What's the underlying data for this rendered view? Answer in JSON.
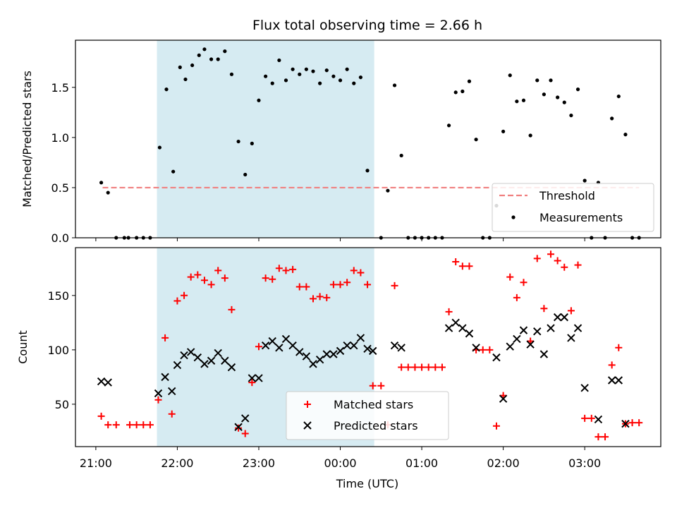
{
  "chart_data": [
    {
      "type": "scatter",
      "title": "Flux total observing time = 2.66 h",
      "xlabel": "",
      "ylabel": "Matched/Predicted stars",
      "xlim": [
        "2000-01-01T20:45",
        "2000-01-02T03:56"
      ],
      "ylim": [
        0,
        1.97
      ],
      "yticks": [
        0.0,
        0.5,
        1.0,
        1.5
      ],
      "ytick_labels": [
        "0.0",
        "0.5",
        "1.0",
        "1.5"
      ],
      "xtick_labels": [
        "21:00",
        "22:00",
        "23:00",
        "00:00",
        "01:00",
        "02:00",
        "03:00"
      ],
      "show_xtick_labels": false,
      "grid": false,
      "legend": "lower right",
      "highlight_span": [
        "2000-01-01T21:45",
        "2000-01-02T00:25"
      ],
      "highlight_color": "#add8e6",
      "threshold": {
        "name": "Threshold",
        "value": 0.5,
        "x": [
          "2000-01-01T21:05",
          "2000-01-02T03:40"
        ],
        "color": "#f08080"
      },
      "series": [
        {
          "name": "Measurements",
          "color": "#000000",
          "marker": "dot",
          "points": [
            [
              "2000-01-01T21:04",
              0.55
            ],
            [
              "2000-01-01T21:09",
              0.45
            ],
            [
              "2000-01-01T21:15",
              0.0
            ],
            [
              "2000-01-01T21:21",
              0.0
            ],
            [
              "2000-01-01T21:24",
              0.0
            ],
            [
              "2000-01-01T21:30",
              0.0
            ],
            [
              "2000-01-01T21:35",
              0.0
            ],
            [
              "2000-01-01T21:40",
              0.0
            ],
            [
              "2000-01-01T21:47",
              0.9
            ],
            [
              "2000-01-01T21:52",
              1.48
            ],
            [
              "2000-01-01T21:57",
              0.66
            ],
            [
              "2000-01-01T22:02",
              1.7
            ],
            [
              "2000-01-01T22:06",
              1.58
            ],
            [
              "2000-01-01T22:11",
              1.72
            ],
            [
              "2000-01-01T22:16",
              1.82
            ],
            [
              "2000-01-01T22:20",
              1.88
            ],
            [
              "2000-01-01T22:25",
              1.78
            ],
            [
              "2000-01-01T22:30",
              1.78
            ],
            [
              "2000-01-01T22:35",
              1.86
            ],
            [
              "2000-01-01T22:40",
              1.63
            ],
            [
              "2000-01-01T22:45",
              0.96
            ],
            [
              "2000-01-01T22:50",
              0.63
            ],
            [
              "2000-01-01T22:55",
              0.94
            ],
            [
              "2000-01-01T23:00",
              1.37
            ],
            [
              "2000-01-01T23:05",
              1.61
            ],
            [
              "2000-01-01T23:10",
              1.54
            ],
            [
              "2000-01-01T23:15",
              1.77
            ],
            [
              "2000-01-01T23:20",
              1.57
            ],
            [
              "2000-01-01T23:25",
              1.68
            ],
            [
              "2000-01-01T23:30",
              1.63
            ],
            [
              "2000-01-01T23:35",
              1.68
            ],
            [
              "2000-01-01T23:40",
              1.66
            ],
            [
              "2000-01-01T23:45",
              1.54
            ],
            [
              "2000-01-01T23:50",
              1.67
            ],
            [
              "2000-01-01T23:55",
              1.61
            ],
            [
              "2000-01-02T00:00",
              1.57
            ],
            [
              "2000-01-02T00:05",
              1.68
            ],
            [
              "2000-01-02T00:10",
              1.54
            ],
            [
              "2000-01-02T00:15",
              1.6
            ],
            [
              "2000-01-02T00:20",
              0.67
            ],
            [
              "2000-01-02T00:30",
              0.0
            ],
            [
              "2000-01-02T00:35",
              0.47
            ],
            [
              "2000-01-02T00:40",
              1.52
            ],
            [
              "2000-01-02T00:45",
              0.82
            ],
            [
              "2000-01-02T00:50",
              0.0
            ],
            [
              "2000-01-02T00:55",
              0.0
            ],
            [
              "2000-01-02T01:00",
              0.0
            ],
            [
              "2000-01-02T01:05",
              0.0
            ],
            [
              "2000-01-02T01:10",
              0.0
            ],
            [
              "2000-01-02T01:15",
              0.0
            ],
            [
              "2000-01-02T01:20",
              1.12
            ],
            [
              "2000-01-02T01:25",
              1.45
            ],
            [
              "2000-01-02T01:30",
              1.46
            ],
            [
              "2000-01-02T01:35",
              1.56
            ],
            [
              "2000-01-02T01:40",
              0.98
            ],
            [
              "2000-01-02T01:45",
              0.0
            ],
            [
              "2000-01-02T01:50",
              0.0
            ],
            [
              "2000-01-02T01:55",
              0.32
            ],
            [
              "2000-01-02T02:00",
              1.06
            ],
            [
              "2000-01-02T02:05",
              1.62
            ],
            [
              "2000-01-02T02:10",
              1.36
            ],
            [
              "2000-01-02T02:15",
              1.37
            ],
            [
              "2000-01-02T02:20",
              1.02
            ],
            [
              "2000-01-02T02:25",
              1.57
            ],
            [
              "2000-01-02T02:30",
              1.43
            ],
            [
              "2000-01-02T02:35",
              1.57
            ],
            [
              "2000-01-02T02:40",
              1.4
            ],
            [
              "2000-01-02T02:45",
              1.35
            ],
            [
              "2000-01-02T02:50",
              1.22
            ],
            [
              "2000-01-02T02:55",
              1.48
            ],
            [
              "2000-01-02T03:00",
              0.57
            ],
            [
              "2000-01-02T03:05",
              0.0
            ],
            [
              "2000-01-02T03:10",
              0.55
            ],
            [
              "2000-01-02T03:15",
              0.0
            ],
            [
              "2000-01-02T03:20",
              1.19
            ],
            [
              "2000-01-02T03:25",
              1.41
            ],
            [
              "2000-01-02T03:30",
              1.03
            ],
            [
              "2000-01-02T03:35",
              0.0
            ],
            [
              "2000-01-02T03:40",
              0.0
            ]
          ]
        }
      ]
    },
    {
      "type": "scatter",
      "title": "",
      "xlabel": "Time (UTC)",
      "ylabel": "Count",
      "xlim": [
        "2000-01-01T20:45",
        "2000-01-02T03:56"
      ],
      "ylim": [
        11,
        194
      ],
      "yticks": [
        50,
        100,
        150
      ],
      "ytick_labels": [
        "50",
        "100",
        "150"
      ],
      "xtick_labels": [
        "21:00",
        "22:00",
        "23:00",
        "00:00",
        "01:00",
        "02:00",
        "03:00"
      ],
      "show_xtick_labels": true,
      "grid": false,
      "legend": "lower center",
      "highlight_span": [
        "2000-01-01T21:45",
        "2000-01-02T00:25"
      ],
      "highlight_color": "#add8e6",
      "series": [
        {
          "name": "Matched stars",
          "color": "#ff0000",
          "marker": "plus",
          "points": [
            [
              "2000-01-01T21:04",
              39
            ],
            [
              "2000-01-01T21:09",
              31
            ],
            [
              "2000-01-01T21:15",
              31
            ],
            [
              "2000-01-01T21:25",
              31
            ],
            [
              "2000-01-01T21:30",
              31
            ],
            [
              "2000-01-01T21:35",
              31
            ],
            [
              "2000-01-01T21:40",
              31
            ],
            [
              "2000-01-01T21:46",
              54
            ],
            [
              "2000-01-01T21:51",
              111
            ],
            [
              "2000-01-01T21:56",
              41
            ],
            [
              "2000-01-01T22:00",
              145
            ],
            [
              "2000-01-01T22:05",
              150
            ],
            [
              "2000-01-01T22:10",
              167
            ],
            [
              "2000-01-01T22:15",
              169
            ],
            [
              "2000-01-01T22:20",
              164
            ],
            [
              "2000-01-01T22:25",
              160
            ],
            [
              "2000-01-01T22:30",
              173
            ],
            [
              "2000-01-01T22:35",
              166
            ],
            [
              "2000-01-01T22:40",
              137
            ],
            [
              "2000-01-01T22:45",
              28
            ],
            [
              "2000-01-01T22:50",
              23
            ],
            [
              "2000-01-01T22:55",
              70
            ],
            [
              "2000-01-01T23:00",
              103
            ],
            [
              "2000-01-01T23:05",
              166
            ],
            [
              "2000-01-01T23:10",
              165
            ],
            [
              "2000-01-01T23:15",
              175
            ],
            [
              "2000-01-01T23:20",
              173
            ],
            [
              "2000-01-01T23:25",
              174
            ],
            [
              "2000-01-01T23:30",
              158
            ],
            [
              "2000-01-01T23:35",
              158
            ],
            [
              "2000-01-01T23:40",
              147
            ],
            [
              "2000-01-01T23:45",
              149
            ],
            [
              "2000-01-01T23:50",
              148
            ],
            [
              "2000-01-01T23:55",
              160
            ],
            [
              "2000-01-02T00:00",
              160
            ],
            [
              "2000-01-02T00:05",
              162
            ],
            [
              "2000-01-02T00:10",
              173
            ],
            [
              "2000-01-02T00:15",
              171
            ],
            [
              "2000-01-02T00:20",
              160
            ],
            [
              "2000-01-02T00:24",
              67
            ],
            [
              "2000-01-02T00:30",
              67
            ],
            [
              "2000-01-02T00:35",
              31
            ],
            [
              "2000-01-02T00:40",
              159
            ],
            [
              "2000-01-02T00:45",
              84
            ],
            [
              "2000-01-02T00:50",
              84
            ],
            [
              "2000-01-02T00:55",
              84
            ],
            [
              "2000-01-02T01:00",
              84
            ],
            [
              "2000-01-02T01:05",
              84
            ],
            [
              "2000-01-02T01:10",
              84
            ],
            [
              "2000-01-02T01:15",
              84
            ],
            [
              "2000-01-02T01:20",
              135
            ],
            [
              "2000-01-02T01:25",
              181
            ],
            [
              "2000-01-02T01:30",
              177
            ],
            [
              "2000-01-02T01:35",
              177
            ],
            [
              "2000-01-02T01:40",
              100
            ],
            [
              "2000-01-02T01:45",
              100
            ],
            [
              "2000-01-02T01:50",
              100
            ],
            [
              "2000-01-02T01:55",
              30
            ],
            [
              "2000-01-02T02:00",
              58
            ],
            [
              "2000-01-02T02:05",
              167
            ],
            [
              "2000-01-02T02:10",
              148
            ],
            [
              "2000-01-02T02:15",
              162
            ],
            [
              "2000-01-02T02:20",
              108
            ],
            [
              "2000-01-02T02:25",
              184
            ],
            [
              "2000-01-02T02:30",
              138
            ],
            [
              "2000-01-02T02:35",
              188
            ],
            [
              "2000-01-02T02:40",
              182
            ],
            [
              "2000-01-02T02:45",
              176
            ],
            [
              "2000-01-02T02:50",
              136
            ],
            [
              "2000-01-02T02:55",
              178
            ],
            [
              "2000-01-02T03:00",
              37
            ],
            [
              "2000-01-02T03:05",
              37
            ],
            [
              "2000-01-02T03:10",
              20
            ],
            [
              "2000-01-02T03:15",
              20
            ],
            [
              "2000-01-02T03:20",
              86
            ],
            [
              "2000-01-02T03:25",
              102
            ],
            [
              "2000-01-02T03:30",
              32
            ],
            [
              "2000-01-02T03:35",
              33
            ],
            [
              "2000-01-02T03:40",
              33
            ]
          ]
        },
        {
          "name": "Predicted stars",
          "color": "#000000",
          "marker": "x",
          "points": [
            [
              "2000-01-01T21:04",
              71
            ],
            [
              "2000-01-01T21:09",
              70
            ],
            [
              "2000-01-01T21:46",
              60
            ],
            [
              "2000-01-01T21:51",
              75
            ],
            [
              "2000-01-01T21:56",
              62
            ],
            [
              "2000-01-01T22:00",
              86
            ],
            [
              "2000-01-01T22:05",
              95
            ],
            [
              "2000-01-01T22:10",
              98
            ],
            [
              "2000-01-01T22:15",
              93
            ],
            [
              "2000-01-01T22:20",
              87
            ],
            [
              "2000-01-01T22:25",
              90
            ],
            [
              "2000-01-01T22:30",
              97
            ],
            [
              "2000-01-01T22:35",
              90
            ],
            [
              "2000-01-01T22:40",
              84
            ],
            [
              "2000-01-01T22:45",
              29
            ],
            [
              "2000-01-01T22:50",
              37
            ],
            [
              "2000-01-01T22:55",
              74
            ],
            [
              "2000-01-01T23:00",
              74
            ],
            [
              "2000-01-01T23:05",
              104
            ],
            [
              "2000-01-01T23:10",
              108
            ],
            [
              "2000-01-01T23:15",
              102
            ],
            [
              "2000-01-01T23:20",
              110
            ],
            [
              "2000-01-01T23:25",
              104
            ],
            [
              "2000-01-01T23:30",
              98
            ],
            [
              "2000-01-01T23:35",
              94
            ],
            [
              "2000-01-01T23:40",
              87
            ],
            [
              "2000-01-01T23:45",
              91
            ],
            [
              "2000-01-01T23:50",
              96
            ],
            [
              "2000-01-01T23:55",
              96
            ],
            [
              "2000-01-02T00:00",
              99
            ],
            [
              "2000-01-02T00:05",
              104
            ],
            [
              "2000-01-02T00:10",
              104
            ],
            [
              "2000-01-02T00:15",
              111
            ],
            [
              "2000-01-02T00:20",
              101
            ],
            [
              "2000-01-02T00:24",
              99
            ],
            [
              "2000-01-02T00:40",
              104
            ],
            [
              "2000-01-02T00:45",
              102
            ],
            [
              "2000-01-02T01:20",
              120
            ],
            [
              "2000-01-02T01:25",
              125
            ],
            [
              "2000-01-02T01:30",
              120
            ],
            [
              "2000-01-02T01:35",
              115
            ],
            [
              "2000-01-02T01:40",
              102
            ],
            [
              "2000-01-02T01:55",
              93
            ],
            [
              "2000-01-02T02:00",
              55
            ],
            [
              "2000-01-02T02:05",
              103
            ],
            [
              "2000-01-02T02:10",
              110
            ],
            [
              "2000-01-02T02:15",
              118
            ],
            [
              "2000-01-02T02:20",
              105
            ],
            [
              "2000-01-02T02:25",
              117
            ],
            [
              "2000-01-02T02:30",
              96
            ],
            [
              "2000-01-02T02:35",
              120
            ],
            [
              "2000-01-02T02:40",
              130
            ],
            [
              "2000-01-02T02:45",
              130
            ],
            [
              "2000-01-02T02:50",
              111
            ],
            [
              "2000-01-02T02:55",
              120
            ],
            [
              "2000-01-02T03:00",
              65
            ],
            [
              "2000-01-02T03:10",
              36
            ],
            [
              "2000-01-02T03:20",
              72
            ],
            [
              "2000-01-02T03:25",
              72
            ],
            [
              "2000-01-02T03:30",
              32
            ]
          ]
        }
      ]
    }
  ]
}
